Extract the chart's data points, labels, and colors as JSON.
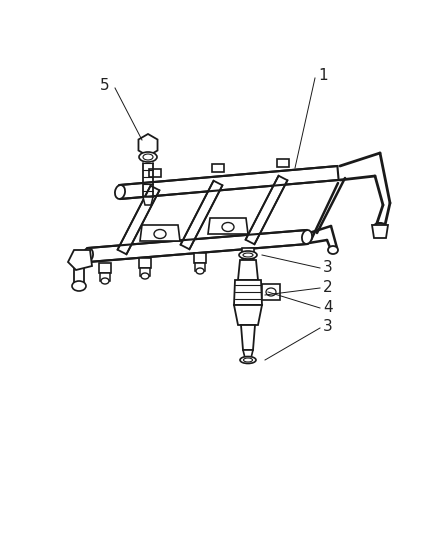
{
  "background_color": "#ffffff",
  "line_color": "#1a1a1a",
  "fig_width": 4.39,
  "fig_height": 5.33,
  "dpi": 100,
  "label_color": "#333333"
}
